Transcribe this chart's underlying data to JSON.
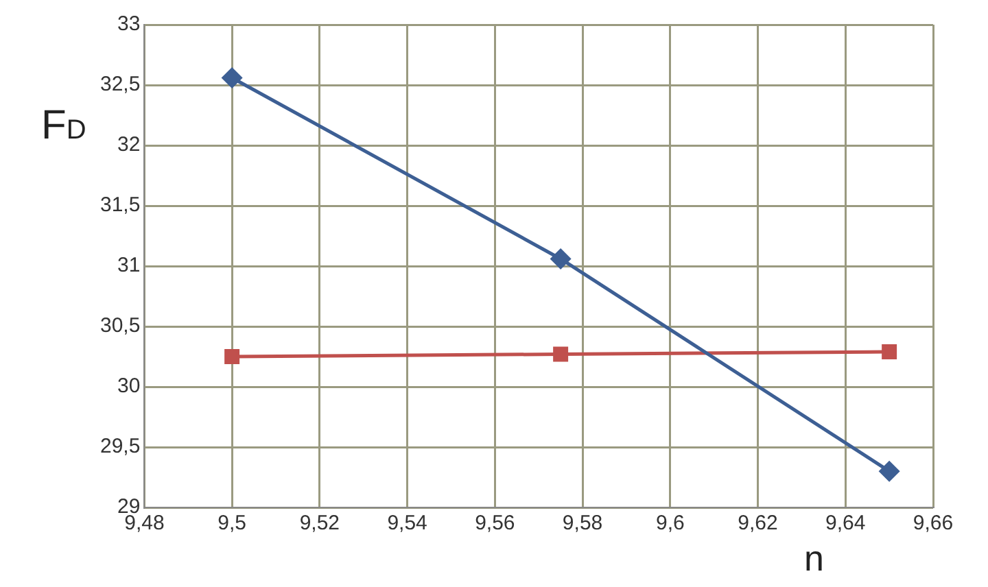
{
  "chart_data": {
    "type": "line",
    "xlabel": "n",
    "ylabel": "F$_{D}$",
    "xlim": [
      9.48,
      9.66
    ],
    "xticks": [
      {
        "value": 9.48,
        "label": "9,48"
      },
      {
        "value": 9.5,
        "label": "9,5"
      },
      {
        "value": 9.52,
        "label": "9,52"
      },
      {
        "value": 9.54,
        "label": "9,54"
      },
      {
        "value": 9.56,
        "label": "9,56"
      },
      {
        "value": 9.58,
        "label": "9,58"
      },
      {
        "value": 9.6,
        "label": "9,6"
      },
      {
        "value": 9.62,
        "label": "9,62"
      },
      {
        "value": 9.64,
        "label": "9,64"
      },
      {
        "value": 9.66,
        "label": "9,66"
      }
    ],
    "ylim": [
      29,
      33
    ],
    "yticks": [
      29,
      {
        "value": 29.5,
        "label": "29,5"
      },
      30,
      {
        "value": 30.5,
        "label": "30,5"
      },
      31,
      {
        "value": 31.5,
        "label": "31,5"
      },
      32,
      {
        "value": 32.5,
        "label": "32,5"
      },
      33
    ],
    "x": [
      9.5,
      9.575,
      9.65
    ],
    "grid": true,
    "legend": false,
    "line_style": "solid",
    "series": [
      {
        "color": "#3d5f94",
        "marker": "diamond",
        "values": [
          32.56,
          31.06,
          29.3
        ]
      },
      {
        "color": "#c0504d",
        "marker": "square",
        "values": [
          30.25,
          30.27,
          30.29
        ]
      }
    ]
  }
}
